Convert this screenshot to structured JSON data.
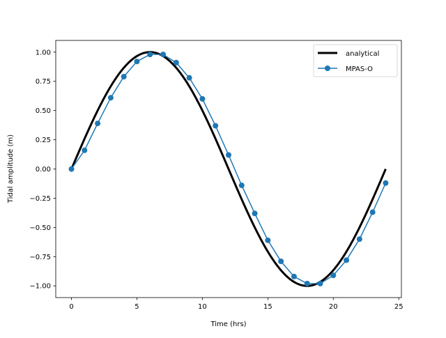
{
  "chart_data": {
    "type": "line",
    "title": "",
    "xlabel": "Time (hrs)",
    "ylabel": "Tidal amplitude (m)",
    "xlim": [
      -1.2,
      25.2
    ],
    "ylim": [
      -1.1,
      1.1
    ],
    "xticks": [
      0,
      5,
      10,
      15,
      20,
      25
    ],
    "xtick_labels": [
      "0",
      "5",
      "10",
      "15",
      "20",
      "25"
    ],
    "yticks": [
      1.0,
      0.75,
      0.5,
      0.25,
      0.0,
      -0.25,
      -0.5,
      -0.75,
      -1.0
    ],
    "ytick_labels": [
      "1.00",
      "0.75",
      "0.50",
      "0.25",
      "0.00",
      "−0.25",
      "−0.50",
      "−0.75",
      "−1.00"
    ],
    "grid": false,
    "legend_position": "top-right",
    "series": [
      {
        "name": "analytical",
        "kind": "line",
        "color": "#000000",
        "function": "sin(2*pi*t/24)",
        "x_range": [
          0,
          24
        ]
      },
      {
        "name": "MPAS-O",
        "kind": "line-marker",
        "color": "#1f77b4",
        "x": [
          0,
          1,
          2,
          3,
          4,
          5,
          6,
          7,
          8,
          9,
          10,
          11,
          12,
          13,
          14,
          15,
          16,
          17,
          18,
          19,
          20,
          21,
          22,
          23,
          24
        ],
        "y": [
          0.0,
          0.16,
          0.39,
          0.61,
          0.79,
          0.92,
          0.98,
          0.98,
          0.91,
          0.78,
          0.6,
          0.37,
          0.12,
          -0.14,
          -0.38,
          -0.61,
          -0.79,
          -0.92,
          -0.98,
          -0.98,
          -0.91,
          -0.78,
          -0.6,
          -0.37,
          -0.12
        ]
      }
    ]
  }
}
